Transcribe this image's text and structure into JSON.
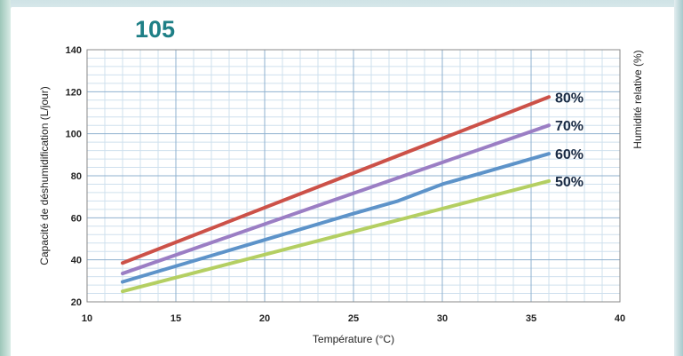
{
  "chart_data": {
    "type": "line",
    "title": "105",
    "xlabel": "Température (°C)",
    "ylabel": "Capacité de déshumidification (L/jour)",
    "y2label": "Humidité relative (%)",
    "xlim": [
      10,
      40
    ],
    "ylim": [
      20,
      140
    ],
    "xticks": [
      "10",
      "15",
      "20",
      "25",
      "30",
      "35",
      "40"
    ],
    "yticks": [
      "20",
      "40",
      "60",
      "80",
      "100",
      "120",
      "140"
    ],
    "grid": true,
    "series": [
      {
        "name": "80%",
        "color": "#cc5148",
        "x": [
          12,
          36
        ],
        "y": [
          38.5,
          117.5
        ]
      },
      {
        "name": "70%",
        "color": "#9b7ec4",
        "x": [
          12,
          36
        ],
        "y": [
          33.5,
          104
        ]
      },
      {
        "name": "60%",
        "color": "#5d93c9",
        "x": [
          12,
          20,
          25,
          27.5,
          30,
          32.5,
          36
        ],
        "y": [
          29.5,
          49.5,
          62,
          68,
          76,
          82,
          90.5
        ]
      },
      {
        "name": "50%",
        "color": "#b4cf62",
        "x": [
          12,
          36
        ],
        "y": [
          25,
          77.5
        ]
      }
    ]
  }
}
